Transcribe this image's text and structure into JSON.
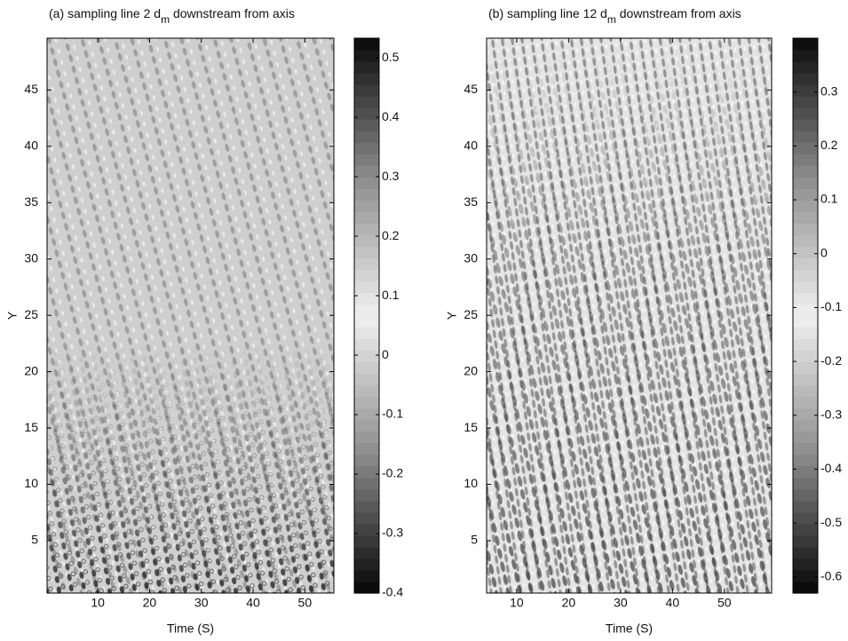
{
  "chart_data": [
    {
      "type": "heatmap",
      "title": [
        "(a) sampling line 2 d",
        "m",
        " downstream from axis"
      ],
      "xlabel": "Time (S)",
      "ylabel": "Y",
      "xlim": [
        0.2,
        55.6
      ],
      "ylim": [
        0.35,
        49.6
      ],
      "xticks": [
        10,
        20,
        30,
        40,
        50
      ],
      "yticks": [
        5,
        10,
        15,
        20,
        25,
        30,
        35,
        40,
        45
      ],
      "clim": [
        -0.4,
        0.533
      ],
      "cticks": [
        -0.4,
        -0.3,
        -0.2,
        -0.1,
        0,
        0.1,
        0.2,
        0.3,
        0.4,
        0.5
      ],
      "colormap": [
        "#050505",
        "#8c8c8c",
        "#f0f0f0",
        "#8c8c8c",
        "#0a0a0a"
      ]
    },
    {
      "type": "heatmap",
      "title": [
        "(b) sampling line 12 d",
        "m",
        " downstream from axis"
      ],
      "xlabel": "Time (S)",
      "ylabel": "Y",
      "xlim": [
        4.2,
        59.1
      ],
      "ylim": [
        0.35,
        49.6
      ],
      "xticks": [
        10,
        20,
        30,
        40,
        50
      ],
      "yticks": [
        5,
        10,
        15,
        20,
        25,
        30,
        35,
        40,
        45
      ],
      "clim": [
        -0.63,
        0.4
      ],
      "cticks": [
        -0.6,
        -0.5,
        -0.4,
        -0.3,
        -0.2,
        -0.1,
        0,
        0.1,
        0.2,
        0.3
      ],
      "colormap": [
        "#050505",
        "#8c8c8c",
        "#f0f0f0",
        "#8c8c8c",
        "#0a0a0a"
      ]
    }
  ]
}
